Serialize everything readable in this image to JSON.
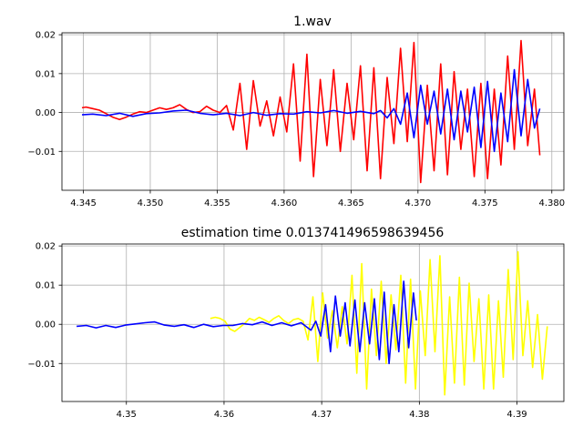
{
  "chart_data": [
    {
      "type": "line",
      "title": "1.wav",
      "xlabel": "",
      "ylabel": "",
      "xlim": [
        4.3434,
        4.3809
      ],
      "ylim": [
        -0.02,
        0.0205
      ],
      "grid": true,
      "xticks": [
        4.345,
        4.35,
        4.355,
        4.36,
        4.365,
        4.37,
        4.375,
        4.38
      ],
      "xtick_labels": [
        "4.345",
        "4.350",
        "4.355",
        "4.360",
        "4.365",
        "4.370",
        "4.375",
        "4.380"
      ],
      "yticks": [
        -0.01,
        0.0,
        0.01,
        0.02
      ],
      "ytick_labels": [
        "−0.01",
        "0.00",
        "0.01",
        "0.02"
      ],
      "series": [
        {
          "color": "#ff0000",
          "x": [
            4.3449,
            4.3452,
            4.3457,
            4.3462,
            4.3467,
            4.3472,
            4.3477,
            4.3482,
            4.3487,
            4.3492,
            4.3497,
            4.3502,
            4.3507,
            4.3512,
            4.3517,
            4.3522,
            4.3527,
            4.3532,
            4.3537,
            4.3542,
            4.3547,
            4.3552,
            4.3557,
            4.3562,
            4.3567,
            4.3572,
            4.3577,
            4.3582,
            4.3587,
            4.3592,
            4.3597,
            4.3602,
            4.3607,
            4.3612,
            4.3617,
            4.3622,
            4.3627,
            4.3632,
            4.3637,
            4.3642,
            4.3647,
            4.3652,
            4.3657,
            4.3662,
            4.3667,
            4.3672,
            4.3677,
            4.3682,
            4.3687,
            4.3692,
            4.3697,
            4.3702,
            4.3707,
            4.3712,
            4.3717,
            4.3722,
            4.3727,
            4.3732,
            4.3737,
            4.3742,
            4.3747,
            4.3752,
            4.3757,
            4.3762,
            4.3767,
            4.3772,
            4.3777,
            4.3782,
            4.3787,
            4.3791
          ],
          "y": [
            0.0012,
            0.0014,
            0.001,
            0.0006,
            -0.0003,
            -0.0012,
            -0.0018,
            -0.0012,
            -0.0004,
            0.0002,
            0.0,
            0.0006,
            0.0012,
            0.0008,
            0.0012,
            0.002,
            0.0008,
            0.0,
            0.0002,
            0.0016,
            0.0006,
            0.0,
            0.0018,
            -0.0045,
            0.0075,
            -0.0095,
            0.0082,
            -0.0035,
            0.003,
            -0.006,
            0.004,
            -0.005,
            0.0125,
            -0.0125,
            0.015,
            -0.0165,
            0.0085,
            -0.0085,
            0.011,
            -0.01,
            0.0075,
            -0.007,
            0.012,
            -0.015,
            0.0115,
            -0.017,
            0.009,
            -0.008,
            0.0165,
            -0.0075,
            0.018,
            -0.018,
            0.007,
            -0.015,
            0.0125,
            -0.016,
            0.0105,
            -0.0095,
            0.006,
            -0.0165,
            0.0075,
            -0.017,
            0.006,
            -0.0135,
            0.0145,
            -0.0095,
            0.0185,
            -0.0085,
            0.006,
            -0.011
          ]
        },
        {
          "color": "#0000ff",
          "x": [
            4.3449,
            4.3457,
            4.3467,
            4.3477,
            4.3487,
            4.3497,
            4.3507,
            4.3517,
            4.3527,
            4.3537,
            4.3547,
            4.3557,
            4.3567,
            4.3577,
            4.3587,
            4.3597,
            4.3607,
            4.3617,
            4.3627,
            4.3637,
            4.3647,
            4.3657,
            4.3667,
            4.3672,
            4.3677,
            4.3682,
            4.3687,
            4.3692,
            4.3697,
            4.3702,
            4.3707,
            4.3712,
            4.3717,
            4.3722,
            4.3727,
            4.3732,
            4.3737,
            4.3742,
            4.3747,
            4.3752,
            4.3757,
            4.3762,
            4.3767,
            4.3772,
            4.3777,
            4.3782,
            4.3787,
            4.3791
          ],
          "y": [
            -0.0006,
            -0.0004,
            -0.0008,
            -0.0002,
            -0.001,
            -0.0003,
            -0.0001,
            0.0004,
            0.0006,
            -0.0002,
            -0.0006,
            -0.0002,
            -0.0008,
            0.0,
            -0.0007,
            -0.0003,
            -0.0004,
            0.0002,
            -0.0001,
            0.0005,
            -0.0002,
            0.0003,
            -0.0003,
            0.0005,
            -0.0014,
            0.001,
            -0.003,
            0.005,
            -0.0065,
            0.007,
            -0.003,
            0.0055,
            -0.0055,
            0.006,
            -0.007,
            0.0055,
            -0.005,
            0.0065,
            -0.009,
            0.008,
            -0.01,
            0.005,
            -0.0075,
            0.011,
            -0.006,
            0.0085,
            -0.004,
            0.001
          ]
        }
      ]
    },
    {
      "type": "line",
      "title": "estimation time 0.013741496598639456",
      "xlabel": "",
      "ylabel": "",
      "xlim": [
        4.3434,
        4.3948
      ],
      "ylim": [
        -0.0197,
        0.0205
      ],
      "grid": true,
      "xticks": [
        4.35,
        4.36,
        4.37,
        4.38,
        4.39
      ],
      "xtick_labels": [
        "4.35",
        "4.36",
        "4.37",
        "4.38",
        "4.39"
      ],
      "yticks": [
        -0.01,
        0.0,
        0.01,
        0.02
      ],
      "ytick_labels": [
        "−0.01",
        "0.00",
        "0.01",
        "0.02"
      ],
      "series": [
        {
          "color": "#ffff00",
          "x": [
            4.3586,
            4.3591,
            4.3596,
            4.3601,
            4.3606,
            4.3611,
            4.3616,
            4.3621,
            4.3626,
            4.3631,
            4.3636,
            4.3641,
            4.3646,
            4.3651,
            4.3656,
            4.3661,
            4.3666,
            4.3671,
            4.3676,
            4.3681,
            4.3686,
            4.3691,
            4.3696,
            4.3701,
            4.3706,
            4.3711,
            4.3716,
            4.3721,
            4.3726,
            4.3731,
            4.3736,
            4.3741,
            4.3746,
            4.3751,
            4.3756,
            4.3761,
            4.3766,
            4.3771,
            4.3776,
            4.3781,
            4.3786,
            4.3791,
            4.3796,
            4.3801,
            4.3806,
            4.3811,
            4.3816,
            4.3821,
            4.3826,
            4.3831,
            4.3836,
            4.3841,
            4.3846,
            4.3851,
            4.3856,
            4.3861,
            4.3866,
            4.3871,
            4.3876,
            4.3881,
            4.3886,
            4.3891,
            4.3896,
            4.3901,
            4.3906,
            4.3911,
            4.3916,
            4.3921,
            4.3926,
            4.3931
          ],
          "y": [
            0.0015,
            0.0018,
            0.0015,
            0.0008,
            -0.0012,
            -0.0018,
            -0.0008,
            0.0002,
            0.0015,
            0.001,
            0.0018,
            0.0012,
            0.0005,
            0.0015,
            0.0022,
            0.001,
            0.0002,
            0.0012,
            0.0015,
            0.0008,
            -0.004,
            0.007,
            -0.0095,
            0.008,
            -0.0035,
            0.0035,
            -0.006,
            0.0045,
            -0.005,
            0.0125,
            -0.0125,
            0.0155,
            -0.0165,
            0.009,
            -0.008,
            0.011,
            -0.01,
            0.0075,
            -0.0065,
            0.0125,
            -0.015,
            0.0115,
            -0.0165,
            0.0085,
            -0.008,
            0.0165,
            -0.007,
            0.0175,
            -0.018,
            0.007,
            -0.015,
            0.012,
            -0.0155,
            0.0105,
            -0.0095,
            0.0065,
            -0.0165,
            0.0075,
            -0.0165,
            0.006,
            -0.0135,
            0.014,
            -0.009,
            0.0185,
            -0.008,
            0.006,
            -0.011,
            0.0025,
            -0.014,
            -0.0005
          ]
        },
        {
          "color": "#0000ff",
          "x": [
            4.3449,
            4.3459,
            4.3469,
            4.3479,
            4.3489,
            4.3499,
            4.3509,
            4.3519,
            4.3529,
            4.3539,
            4.3549,
            4.3559,
            4.3569,
            4.3579,
            4.3589,
            4.3599,
            4.3609,
            4.3619,
            4.3629,
            4.3639,
            4.3649,
            4.3659,
            4.3669,
            4.3679,
            4.3689,
            4.3694,
            4.3699,
            4.3704,
            4.3709,
            4.3714,
            4.3719,
            4.3724,
            4.3729,
            4.3734,
            4.3739,
            4.3744,
            4.3749,
            4.3754,
            4.3759,
            4.3764,
            4.3769,
            4.3774,
            4.3779,
            4.3784,
            4.3789,
            4.3794,
            4.3797
          ],
          "y": [
            -0.0005,
            -0.0003,
            -0.0009,
            -0.0003,
            -0.0008,
            -0.0002,
            0.0001,
            0.0004,
            0.0006,
            -0.0002,
            -0.0005,
            -0.0001,
            -0.0008,
            0.0,
            -0.0006,
            -0.0003,
            -0.0003,
            0.0002,
            -0.0001,
            0.0006,
            -0.0003,
            0.0004,
            -0.0004,
            0.0004,
            -0.0015,
            0.0008,
            -0.003,
            0.005,
            -0.007,
            0.0072,
            -0.003,
            0.0055,
            -0.0055,
            0.0062,
            -0.007,
            0.0055,
            -0.005,
            0.0065,
            -0.009,
            0.0082,
            -0.01,
            0.005,
            -0.007,
            0.011,
            -0.006,
            0.008,
            0.001
          ]
        }
      ]
    }
  ]
}
